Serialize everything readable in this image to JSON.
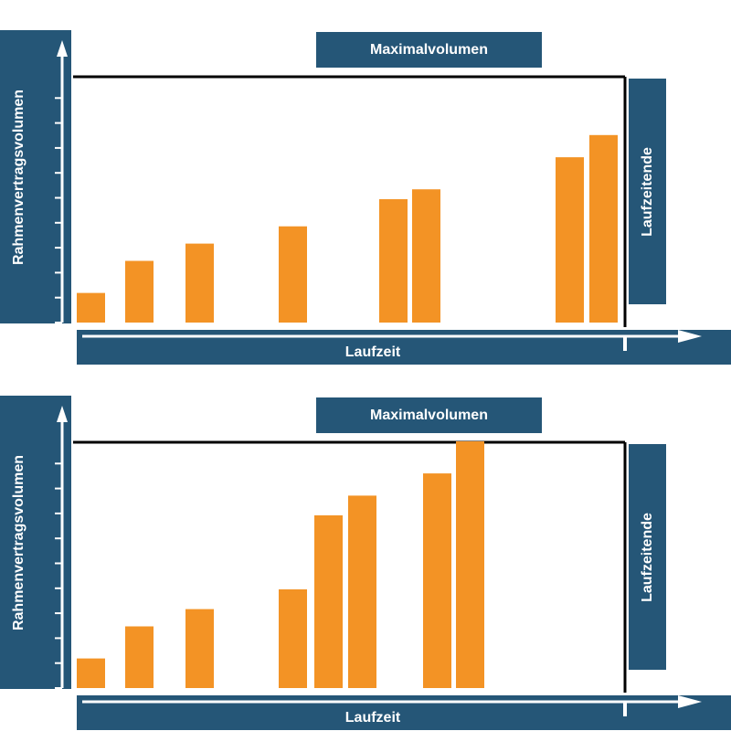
{
  "charts": [
    {
      "title": "Maximalvolumen",
      "ylabel": "Rahmenvertragsvolumen",
      "xlabel": "Laufzeit",
      "end_label": "Laufzeitende"
    },
    {
      "title": "Maximalvolumen",
      "ylabel": "Rahmenvertragsvolumen",
      "xlabel": "Laufzeit",
      "end_label": "Laufzeitende"
    }
  ],
  "colors": {
    "bar": "#f39325",
    "label_box": "#255677",
    "frame": "#000000"
  },
  "chart_data": [
    {
      "type": "bar",
      "ylim": [
        0,
        100
      ],
      "series": [
        {
          "values": [
            12,
            25,
            32,
            39,
            50,
            54,
            67,
            76
          ]
        }
      ]
    },
    {
      "type": "bar",
      "ylim": [
        0,
        100
      ],
      "series": [
        {
          "values": [
            12,
            25,
            32,
            40,
            70,
            78,
            87,
            100
          ]
        }
      ]
    }
  ]
}
